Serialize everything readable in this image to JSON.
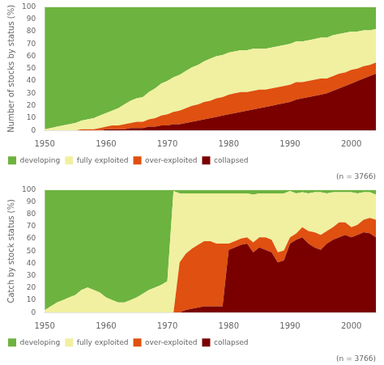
{
  "chart_data": [
    {
      "type": "area",
      "stacked": true,
      "grid": false,
      "legend": "bottom",
      "y_label": "Number of stocks by status (%)",
      "annotation": "(n = 3766)",
      "x": [
        1950,
        1951,
        1952,
        1953,
        1954,
        1955,
        1956,
        1957,
        1958,
        1959,
        1960,
        1961,
        1962,
        1963,
        1964,
        1965,
        1966,
        1967,
        1968,
        1969,
        1970,
        1971,
        1972,
        1973,
        1974,
        1975,
        1976,
        1977,
        1978,
        1979,
        1980,
        1981,
        1982,
        1983,
        1984,
        1985,
        1986,
        1987,
        1988,
        1989,
        1990,
        1991,
        1992,
        1993,
        1994,
        1995,
        1996,
        1997,
        1998,
        1999,
        2000,
        2001,
        2002,
        2003,
        2004
      ],
      "xlim": [
        1950,
        2004
      ],
      "xticks": [
        1950,
        1960,
        1970,
        1980,
        1990,
        2000
      ],
      "ylim": [
        0,
        100
      ],
      "yticks": [
        0,
        10,
        20,
        30,
        40,
        50,
        60,
        70,
        80,
        90,
        100
      ],
      "series": [
        {
          "name": "collapsed",
          "color": "#7a0000",
          "values": [
            0,
            0,
            0,
            0,
            0,
            0,
            0,
            0,
            0,
            0,
            1,
            1,
            1,
            1,
            2,
            2,
            2,
            3,
            3,
            4,
            4,
            5,
            5,
            6,
            7,
            8,
            9,
            10,
            11,
            12,
            13,
            14,
            15,
            16,
            17,
            18,
            19,
            20,
            21,
            22,
            23,
            25,
            26,
            27,
            28,
            29,
            30,
            32,
            34,
            36,
            38,
            40,
            42,
            44,
            46
          ]
        },
        {
          "name": "over-exploited",
          "color": "#e05010",
          "values": [
            0,
            0,
            0,
            0,
            0,
            0,
            1,
            1,
            1,
            2,
            2,
            3,
            3,
            4,
            4,
            5,
            5,
            6,
            7,
            8,
            9,
            10,
            11,
            12,
            13,
            13,
            14,
            14,
            15,
            15,
            16,
            16,
            16,
            15,
            15,
            15,
            14,
            14,
            14,
            14,
            14,
            14,
            13,
            13,
            13,
            13,
            12,
            12,
            12,
            11,
            11,
            10,
            10,
            9,
            9
          ]
        },
        {
          "name": "fully exploited",
          "color": "#f0f0a0",
          "values": [
            1,
            2,
            3,
            4,
            5,
            6,
            7,
            8,
            9,
            10,
            11,
            12,
            14,
            16,
            18,
            19,
            20,
            22,
            24,
            26,
            27,
            28,
            29,
            30,
            31,
            32,
            33,
            34,
            34,
            34,
            34,
            34,
            34,
            34,
            34,
            33,
            33,
            33,
            33,
            33,
            33,
            33,
            33,
            33,
            33,
            33,
            33,
            33,
            32,
            32,
            31,
            30,
            29,
            28,
            27
          ]
        },
        {
          "name": "developing",
          "color": "#6db33f",
          "values": [
            99,
            98,
            97,
            96,
            95,
            94,
            92,
            91,
            90,
            88,
            86,
            84,
            82,
            79,
            76,
            74,
            73,
            69,
            66,
            62,
            60,
            57,
            55,
            52,
            49,
            47,
            44,
            42,
            40,
            39,
            37,
            36,
            35,
            35,
            34,
            34,
            34,
            33,
            32,
            31,
            30,
            28,
            28,
            27,
            26,
            25,
            25,
            23,
            22,
            21,
            20,
            20,
            19,
            19,
            18
          ]
        }
      ]
    },
    {
      "type": "area",
      "stacked": true,
      "grid": false,
      "legend": "bottom",
      "y_label": "Catch by stock status (%)",
      "annotation": "(n = 3766)",
      "x": [
        1950,
        1951,
        1952,
        1953,
        1954,
        1955,
        1956,
        1957,
        1958,
        1959,
        1960,
        1961,
        1962,
        1963,
        1964,
        1965,
        1966,
        1967,
        1968,
        1969,
        1970,
        1971,
        1972,
        1973,
        1974,
        1975,
        1976,
        1977,
        1978,
        1979,
        1980,
        1981,
        1982,
        1983,
        1984,
        1985,
        1986,
        1987,
        1988,
        1989,
        1990,
        1991,
        1992,
        1993,
        1994,
        1995,
        1996,
        1997,
        1998,
        1999,
        2000,
        2001,
        2002,
        2003,
        2004
      ],
      "xlim": [
        1950,
        2004
      ],
      "xticks": [
        1950,
        1960,
        1970,
        1980,
        1990,
        2000
      ],
      "ylim": [
        0,
        100
      ],
      "yticks": [
        0,
        10,
        20,
        30,
        40,
        50,
        60,
        70,
        80,
        90,
        100
      ],
      "series": [
        {
          "name": "collapsed",
          "color": "#7a0000",
          "values": [
            0,
            0,
            0,
            0,
            0,
            0,
            0,
            0,
            0,
            0,
            0,
            0,
            0,
            0,
            0,
            0,
            0,
            0,
            0,
            0,
            0,
            0,
            0,
            2.0408,
            3.0612,
            4.0816,
            5.102,
            5.102,
            5.102,
            5.102,
            51.0204,
            53.0612,
            55.102,
            56.1224,
            48.9796,
            53.0612,
            51.0204,
            48.9796,
            40.8163,
            42.4242,
            56.1224,
            59.1837,
            61.2245,
            56.1224,
            53.0612,
            51.0204,
            56.1224,
            59.1837,
            61.2245,
            63.2653,
            61.2245,
            63.2653,
            65.3061,
            64.5833,
            61.2245
          ]
        },
        {
          "name": "over-exploited",
          "color": "#e05010",
          "values": [
            0,
            0,
            0,
            0,
            0,
            0,
            0,
            0,
            0,
            0,
            0,
            0,
            0,
            0,
            0,
            0,
            0,
            0,
            0,
            0,
            0,
            0,
            40.8163,
            45.9184,
            48.9796,
            51.0204,
            53.0612,
            53.0612,
            51.0204,
            51.0204,
            5.102,
            5.102,
            5.102,
            5.102,
            8.1633,
            8.1633,
            10.2041,
            10.2041,
            8.1633,
            8.0808,
            5.102,
            5.102,
            8.1633,
            10.2041,
            12.2449,
            12.2449,
            10.2041,
            10.2041,
            12.2449,
            10.2041,
            8.1633,
            8.1633,
            10.2041,
            12.5,
            14.2857
          ]
        },
        {
          "name": "fully exploited",
          "color": "#f0f0a0",
          "values": [
            2.0202,
            5.102,
            8.1633,
            10.2041,
            12.2449,
            14.2857,
            18.3673,
            20.4082,
            18.3673,
            16.3265,
            12.2449,
            10.2041,
            8.1633,
            8.1633,
            10.2041,
            12.2449,
            15.3061,
            18.3673,
            20.4082,
            22.449,
            25.5102,
            98.9796,
            56.1224,
            48.9796,
            44.898,
            41.8367,
            38.7755,
            38.7755,
            40.8163,
            40.8163,
            40.8163,
            38.7755,
            36.7347,
            35.7143,
            38.7755,
            35.7143,
            35.7143,
            37.7551,
            47.9592,
            46.4646,
            37.7551,
            32.6531,
            28.5714,
            30.6122,
            32.6531,
            34.6939,
            30.6122,
            28.5714,
            24.4898,
            24.4898,
            28.5714,
            25.5102,
            22.449,
            20.8333,
            20.4082
          ]
        },
        {
          "name": "developing",
          "color": "#6db33f",
          "values": [
            97.9798,
            94.898,
            91.8367,
            89.7959,
            87.7551,
            85.7143,
            81.6327,
            79.5918,
            81.6327,
            83.6735,
            87.7551,
            89.7959,
            91.8367,
            91.8367,
            89.7959,
            87.7551,
            84.6939,
            81.6327,
            79.5918,
            77.551,
            74.4898,
            1.0204,
            3.0612,
            3.0612,
            3.0612,
            3.0612,
            3.0612,
            3.0612,
            3.0612,
            3.0612,
            3.0612,
            3.0612,
            3.0612,
            3.0612,
            4.0816,
            3.0612,
            3.0612,
            3.0612,
            3.0612,
            3.0303,
            1.0204,
            3.0612,
            2.0408,
            3.0612,
            2.0408,
            2.0408,
            3.0612,
            2.0408,
            2.0408,
            2.0408,
            2.0408,
            3.0612,
            2.0408,
            2.0833,
            4.0816
          ]
        }
      ]
    }
  ]
}
